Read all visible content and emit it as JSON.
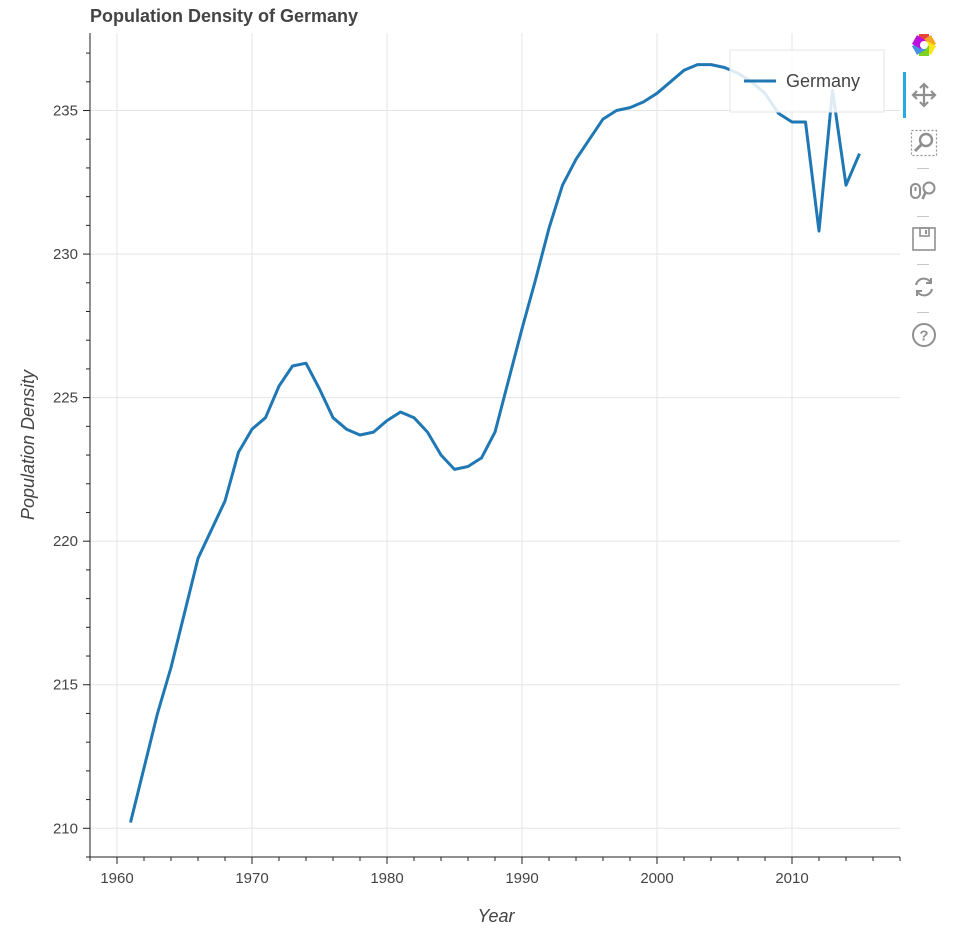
{
  "chart_data": {
    "type": "line",
    "title": "Population Density of Germany",
    "xlabel": "Year",
    "ylabel": "Population Density",
    "xlim": [
      1958,
      2018
    ],
    "ylim": [
      209,
      237.7
    ],
    "x_ticks": [
      1960,
      1970,
      1980,
      1990,
      2000,
      2010
    ],
    "y_ticks": [
      210,
      215,
      220,
      225,
      230,
      235
    ],
    "grid": true,
    "legend_position": "top-right",
    "series": [
      {
        "name": "Germany",
        "color": "#1f77b4",
        "x": [
          1961,
          1962,
          1963,
          1964,
          1965,
          1966,
          1967,
          1968,
          1969,
          1970,
          1971,
          1972,
          1973,
          1974,
          1975,
          1976,
          1977,
          1978,
          1979,
          1980,
          1981,
          1982,
          1983,
          1984,
          1985,
          1986,
          1987,
          1988,
          1989,
          1990,
          1991,
          1992,
          1993,
          1994,
          1995,
          1996,
          1997,
          1998,
          1999,
          2000,
          2001,
          2002,
          2003,
          2004,
          2005,
          2006,
          2007,
          2008,
          2009,
          2010,
          2011,
          2012,
          2013,
          2014,
          2015
        ],
        "y": [
          210.2,
          212.1,
          214.0,
          215.6,
          217.5,
          219.4,
          220.4,
          221.4,
          223.1,
          223.9,
          224.3,
          225.4,
          226.1,
          226.2,
          225.3,
          224.3,
          223.9,
          223.7,
          223.8,
          224.2,
          224.5,
          224.3,
          223.8,
          223.0,
          222.5,
          222.6,
          222.9,
          223.8,
          225.6,
          227.4,
          229.1,
          230.9,
          232.4,
          233.3,
          234.0,
          234.7,
          235.0,
          235.1,
          235.3,
          235.6,
          236.0,
          236.4,
          236.6,
          236.6,
          236.5,
          236.3,
          236.0,
          235.6,
          234.9,
          234.6,
          234.6,
          230.8,
          235.7,
          232.4,
          233.5
        ]
      }
    ]
  },
  "toolbar": {
    "tools": [
      {
        "name": "bokeh-logo-icon"
      },
      {
        "name": "pan-icon"
      },
      {
        "name": "box-zoom-icon"
      },
      {
        "name": "wheel-zoom-icon"
      },
      {
        "name": "save-icon"
      },
      {
        "name": "reset-icon"
      },
      {
        "name": "help-icon"
      }
    ],
    "active_color": "#26aae1"
  }
}
